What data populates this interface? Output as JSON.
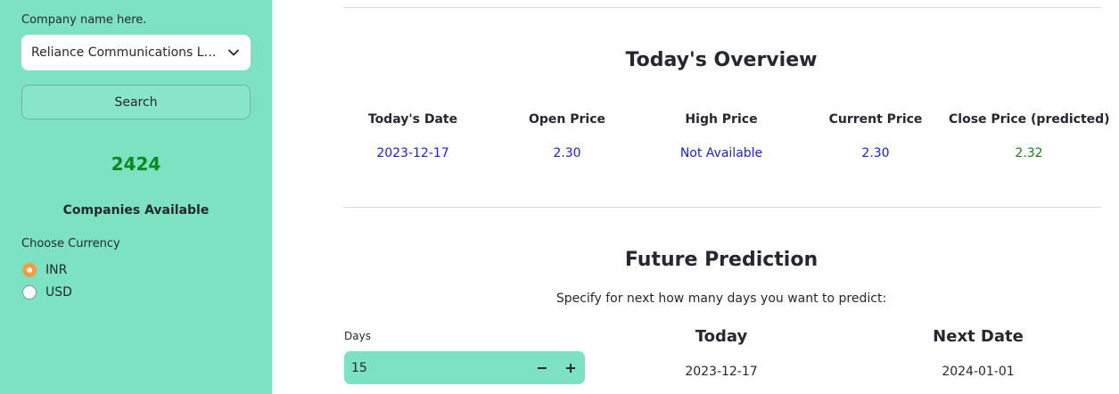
{
  "sidebar": {
    "company_label": "Company name here.",
    "company_selected": "Reliance Communications Limited",
    "search_label": "Search",
    "count": "2424",
    "count_label": "Companies Available",
    "currency_label": "Choose Currency",
    "currency_options": [
      "INR",
      "USD"
    ],
    "currency_selected": "INR"
  },
  "overview": {
    "title": "Today's Overview",
    "columns": [
      {
        "header": "Today's Date",
        "value": "2023-12-17"
      },
      {
        "header": "Open Price",
        "value": "2.30"
      },
      {
        "header": "High Price",
        "value": "Not Available"
      },
      {
        "header": "Current Price",
        "value": "2.30"
      },
      {
        "header": "Close Price (predicted)",
        "value": "2.32"
      }
    ]
  },
  "prediction": {
    "title": "Future Prediction",
    "subtitle": "Specify for next how many days you want to predict:",
    "days_label": "Days",
    "days_value": "15",
    "today_label": "Today",
    "today_value": "2023-12-17",
    "next_label": "Next Date",
    "next_value": "2024-01-01"
  },
  "colors": {
    "sidebar_bg": "#7de2c2",
    "accent_radio": "#ff9b3d",
    "value_blue": "#1c1fd6",
    "value_green": "#1c7a1c",
    "count_green": "#0a8a1e"
  }
}
